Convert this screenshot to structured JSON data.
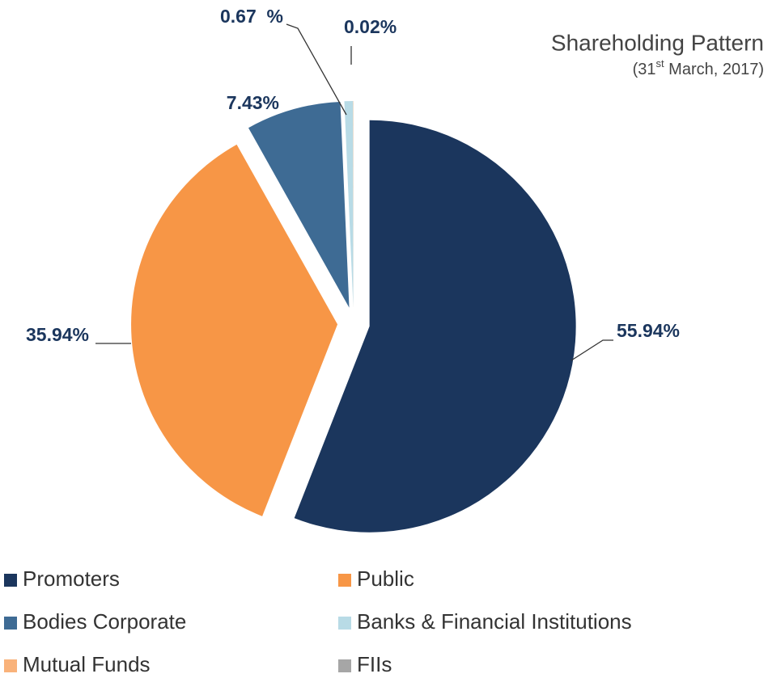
{
  "chart_data": {
    "type": "pie",
    "title": "Shareholding Pattern",
    "subtitle": [
      "(31",
      "st",
      " March, 2017)"
    ],
    "categories": [
      "Promoters",
      "Public",
      "Bodies Corporate",
      "Banks & Financial Institutions",
      "Mutual Funds",
      "FIIs"
    ],
    "values": [
      55.94,
      35.94,
      7.43,
      0.67,
      0.02,
      0
    ],
    "value_labels": [
      "55.94%",
      "35.94%",
      "7.43%",
      "0.67  %",
      "0.02%",
      null
    ],
    "colors": [
      "#1b365d",
      "#f79646",
      "#3e6b94",
      "#b8dbe6",
      "#f9b27a",
      "#a6a6a6"
    ],
    "legend": "bottom"
  }
}
